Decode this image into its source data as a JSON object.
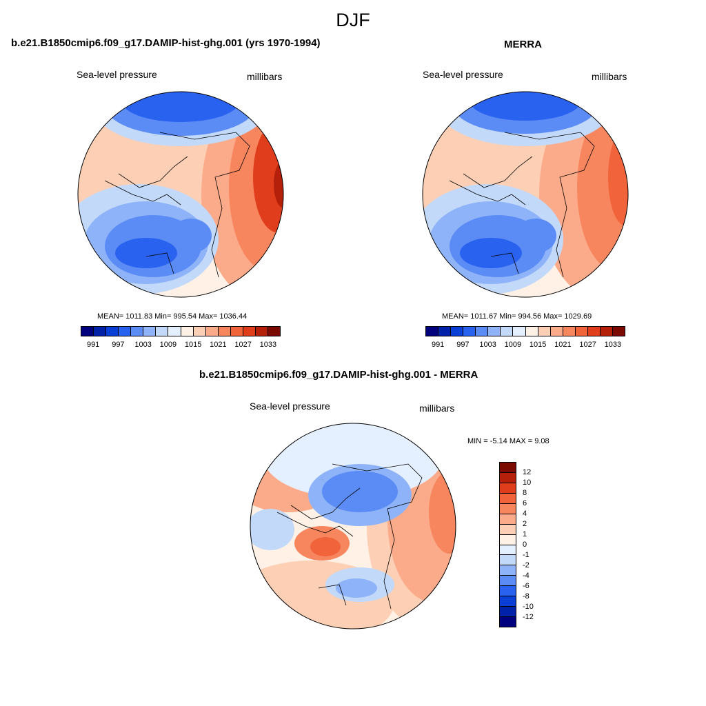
{
  "super_title": "DJF",
  "panels": [
    {
      "title": "b.e21.B1850cmip6.f09_g17.DAMIP-hist-ghg.001 (yrs 1970-1994)",
      "variable": "Sea-level pressure",
      "units": "millibars",
      "stats": "MEAN= 1011.83  Min= 995.54  Max= 1036.44"
    },
    {
      "title": "MERRA",
      "variable": "Sea-level pressure",
      "units": "millibars",
      "stats": "MEAN= 1011.67  Min= 994.56  Max= 1029.69"
    },
    {
      "title": "b.e21.B1850cmip6.f09_g17.DAMIP-hist-ghg.001 - MERRA",
      "variable": "Sea-level pressure",
      "units": "millibars",
      "stats": "MIN =  -5.14 MAX =   9.08"
    }
  ],
  "colorbar_abs": {
    "colors": [
      "#00007f",
      "#0022a8",
      "#0a3fd6",
      "#2a62f0",
      "#5b8bf5",
      "#8eb3f8",
      "#c2d9fa",
      "#e4efff",
      "#fff1e6",
      "#fdd0b5",
      "#fbab8a",
      "#f7865f",
      "#f1633a",
      "#e03d1c",
      "#b5200a",
      "#7a0900"
    ],
    "ticks": [
      "991",
      "997",
      "1003",
      "1009",
      "1015",
      "1021",
      "1027",
      "1033"
    ]
  },
  "colorbar_diff": {
    "colors": [
      "#7a0900",
      "#b5200a",
      "#e03d1c",
      "#f1633a",
      "#f7865f",
      "#fbab8a",
      "#fdd0b5",
      "#fff1e6",
      "#e4efff",
      "#c2d9fa",
      "#8eb3f8",
      "#5b8bf5",
      "#2a62f0",
      "#0a3fd6",
      "#0022a8",
      "#00007f"
    ],
    "ticks": [
      "12",
      "10",
      "8",
      "6",
      "4",
      "2",
      "1",
      "0",
      "-1",
      "-2",
      "-4",
      "-6",
      "-8",
      "-10",
      "-12"
    ]
  }
}
